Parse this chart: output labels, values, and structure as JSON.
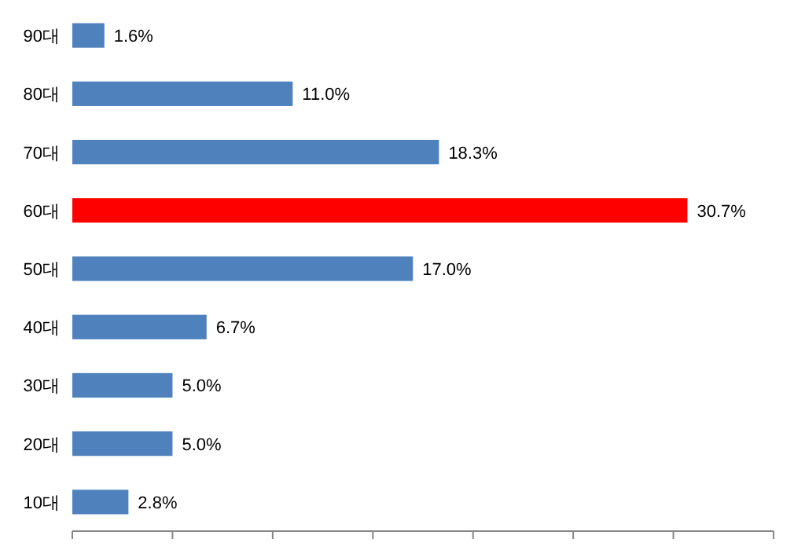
{
  "chart_data": {
    "type": "bar",
    "orientation": "horizontal",
    "categories": [
      "90대",
      "80대",
      "70대",
      "60대",
      "50대",
      "40대",
      "30대",
      "20대",
      "10대"
    ],
    "values": [
      1.6,
      11.0,
      18.3,
      30.7,
      17.0,
      6.7,
      5.0,
      5.0,
      2.8
    ],
    "value_labels": [
      "1.6%",
      "11.0%",
      "18.3%",
      "30.7%",
      "17.0%",
      "6.7%",
      "5.0%",
      "5.0%",
      "2.8%"
    ],
    "colors": [
      "#4f81bd",
      "#4f81bd",
      "#4f81bd",
      "#ff0000",
      "#4f81bd",
      "#4f81bd",
      "#4f81bd",
      "#4f81bd",
      "#4f81bd"
    ],
    "xlim": [
      0,
      35
    ],
    "xticks": [
      {
        "value": 0,
        "label": null
      },
      {
        "value": 5,
        "label": null
      },
      {
        "value": 10,
        "label": null
      },
      {
        "value": 15,
        "label": null
      },
      {
        "value": 20,
        "label": null
      },
      {
        "value": 25,
        "label": null
      },
      {
        "value": 30,
        "label": null
      },
      {
        "value": 35,
        "label": null
      }
    ],
    "grid": false
  }
}
